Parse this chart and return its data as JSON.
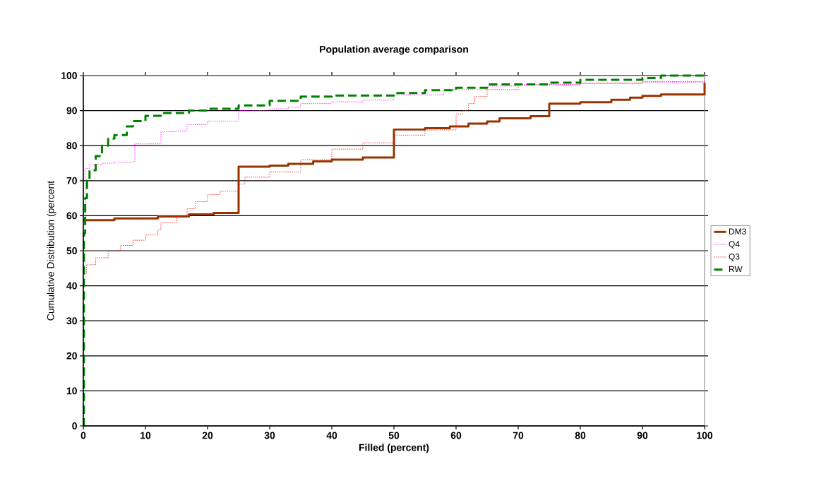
{
  "chart_data": {
    "type": "step",
    "title": "Population average comparison",
    "xlabel": "Filled (percent)",
    "ylabel": "Cumulative Distribution (percent",
    "xlim": [
      0,
      100
    ],
    "ylim": [
      0,
      100
    ],
    "xticks": [
      0,
      10,
      20,
      30,
      40,
      50,
      60,
      70,
      80,
      90,
      100
    ],
    "yticks": [
      0,
      10,
      20,
      30,
      40,
      50,
      60,
      70,
      80,
      90,
      100
    ],
    "grid": "y",
    "legend": "right",
    "marker": "none",
    "series": [
      {
        "name": "DM3",
        "color": "#993300",
        "line_style": "solid",
        "x": [
          0,
          5,
          12,
          17,
          21,
          25,
          30,
          33,
          37,
          40,
          45,
          50,
          55,
          59,
          62,
          65,
          67,
          72,
          75,
          80,
          85,
          88,
          90,
          93,
          100
        ],
        "values": [
          58.7,
          59.2,
          59.8,
          60.4,
          60.8,
          74,
          74.3,
          74.8,
          75.5,
          76,
          76.6,
          84.6,
          85,
          85.5,
          86.3,
          86.9,
          87.8,
          88.4,
          92,
          92.4,
          93.1,
          93.7,
          94.2,
          94.6,
          98
        ]
      },
      {
        "name": "Q4",
        "color": "#ff00ff",
        "line_style": "dotted",
        "x": [
          0,
          0.3,
          1,
          3,
          5,
          8.3,
          12.5,
          15,
          16.7,
          20,
          25,
          30,
          33,
          35,
          40,
          45,
          50,
          58,
          65,
          70,
          80,
          90,
          100
        ],
        "values": [
          60,
          73.5,
          74.5,
          75,
          75.3,
          80.5,
          84,
          84.2,
          86,
          87,
          90,
          90.5,
          91,
          92,
          92.5,
          93,
          94.5,
          96,
          97,
          97.5,
          97.8,
          98,
          98.5
        ]
      },
      {
        "name": "Q3",
        "color": "#ff0000",
        "line_style": "dotted",
        "x": [
          0,
          0.5,
          2,
          4,
          6,
          8,
          10,
          12,
          12.5,
          15,
          16.7,
          18,
          20,
          22,
          25,
          26,
          30,
          35,
          40,
          45,
          50,
          55,
          60,
          61,
          62,
          63,
          65,
          70,
          80,
          90,
          100
        ],
        "values": [
          43.5,
          46,
          48,
          50,
          51.5,
          53,
          54.5,
          56,
          58,
          60,
          62,
          64,
          66,
          67,
          69,
          71,
          72.5,
          76,
          79,
          80.8,
          83,
          84.5,
          89,
          90,
          92,
          94,
          96,
          97.3,
          97.8,
          98.3,
          98.5
        ]
      },
      {
        "name": "RW",
        "color": "#008000",
        "line_style": "dashed",
        "x": [
          0,
          0.1,
          0.3,
          0.6,
          1,
          2,
          3,
          4,
          5,
          7,
          8,
          10,
          13,
          17,
          20,
          25,
          30,
          35,
          40,
          50,
          55,
          60,
          65,
          75,
          80,
          90,
          93,
          100
        ],
        "values": [
          0,
          55,
          65,
          70,
          73,
          77,
          80,
          82,
          83,
          85.5,
          87,
          88.5,
          89.3,
          90,
          90.5,
          91.5,
          92.8,
          94,
          94.3,
          95,
          95.8,
          96.5,
          97.5,
          98,
          98.8,
          99.3,
          100,
          100
        ]
      }
    ]
  }
}
